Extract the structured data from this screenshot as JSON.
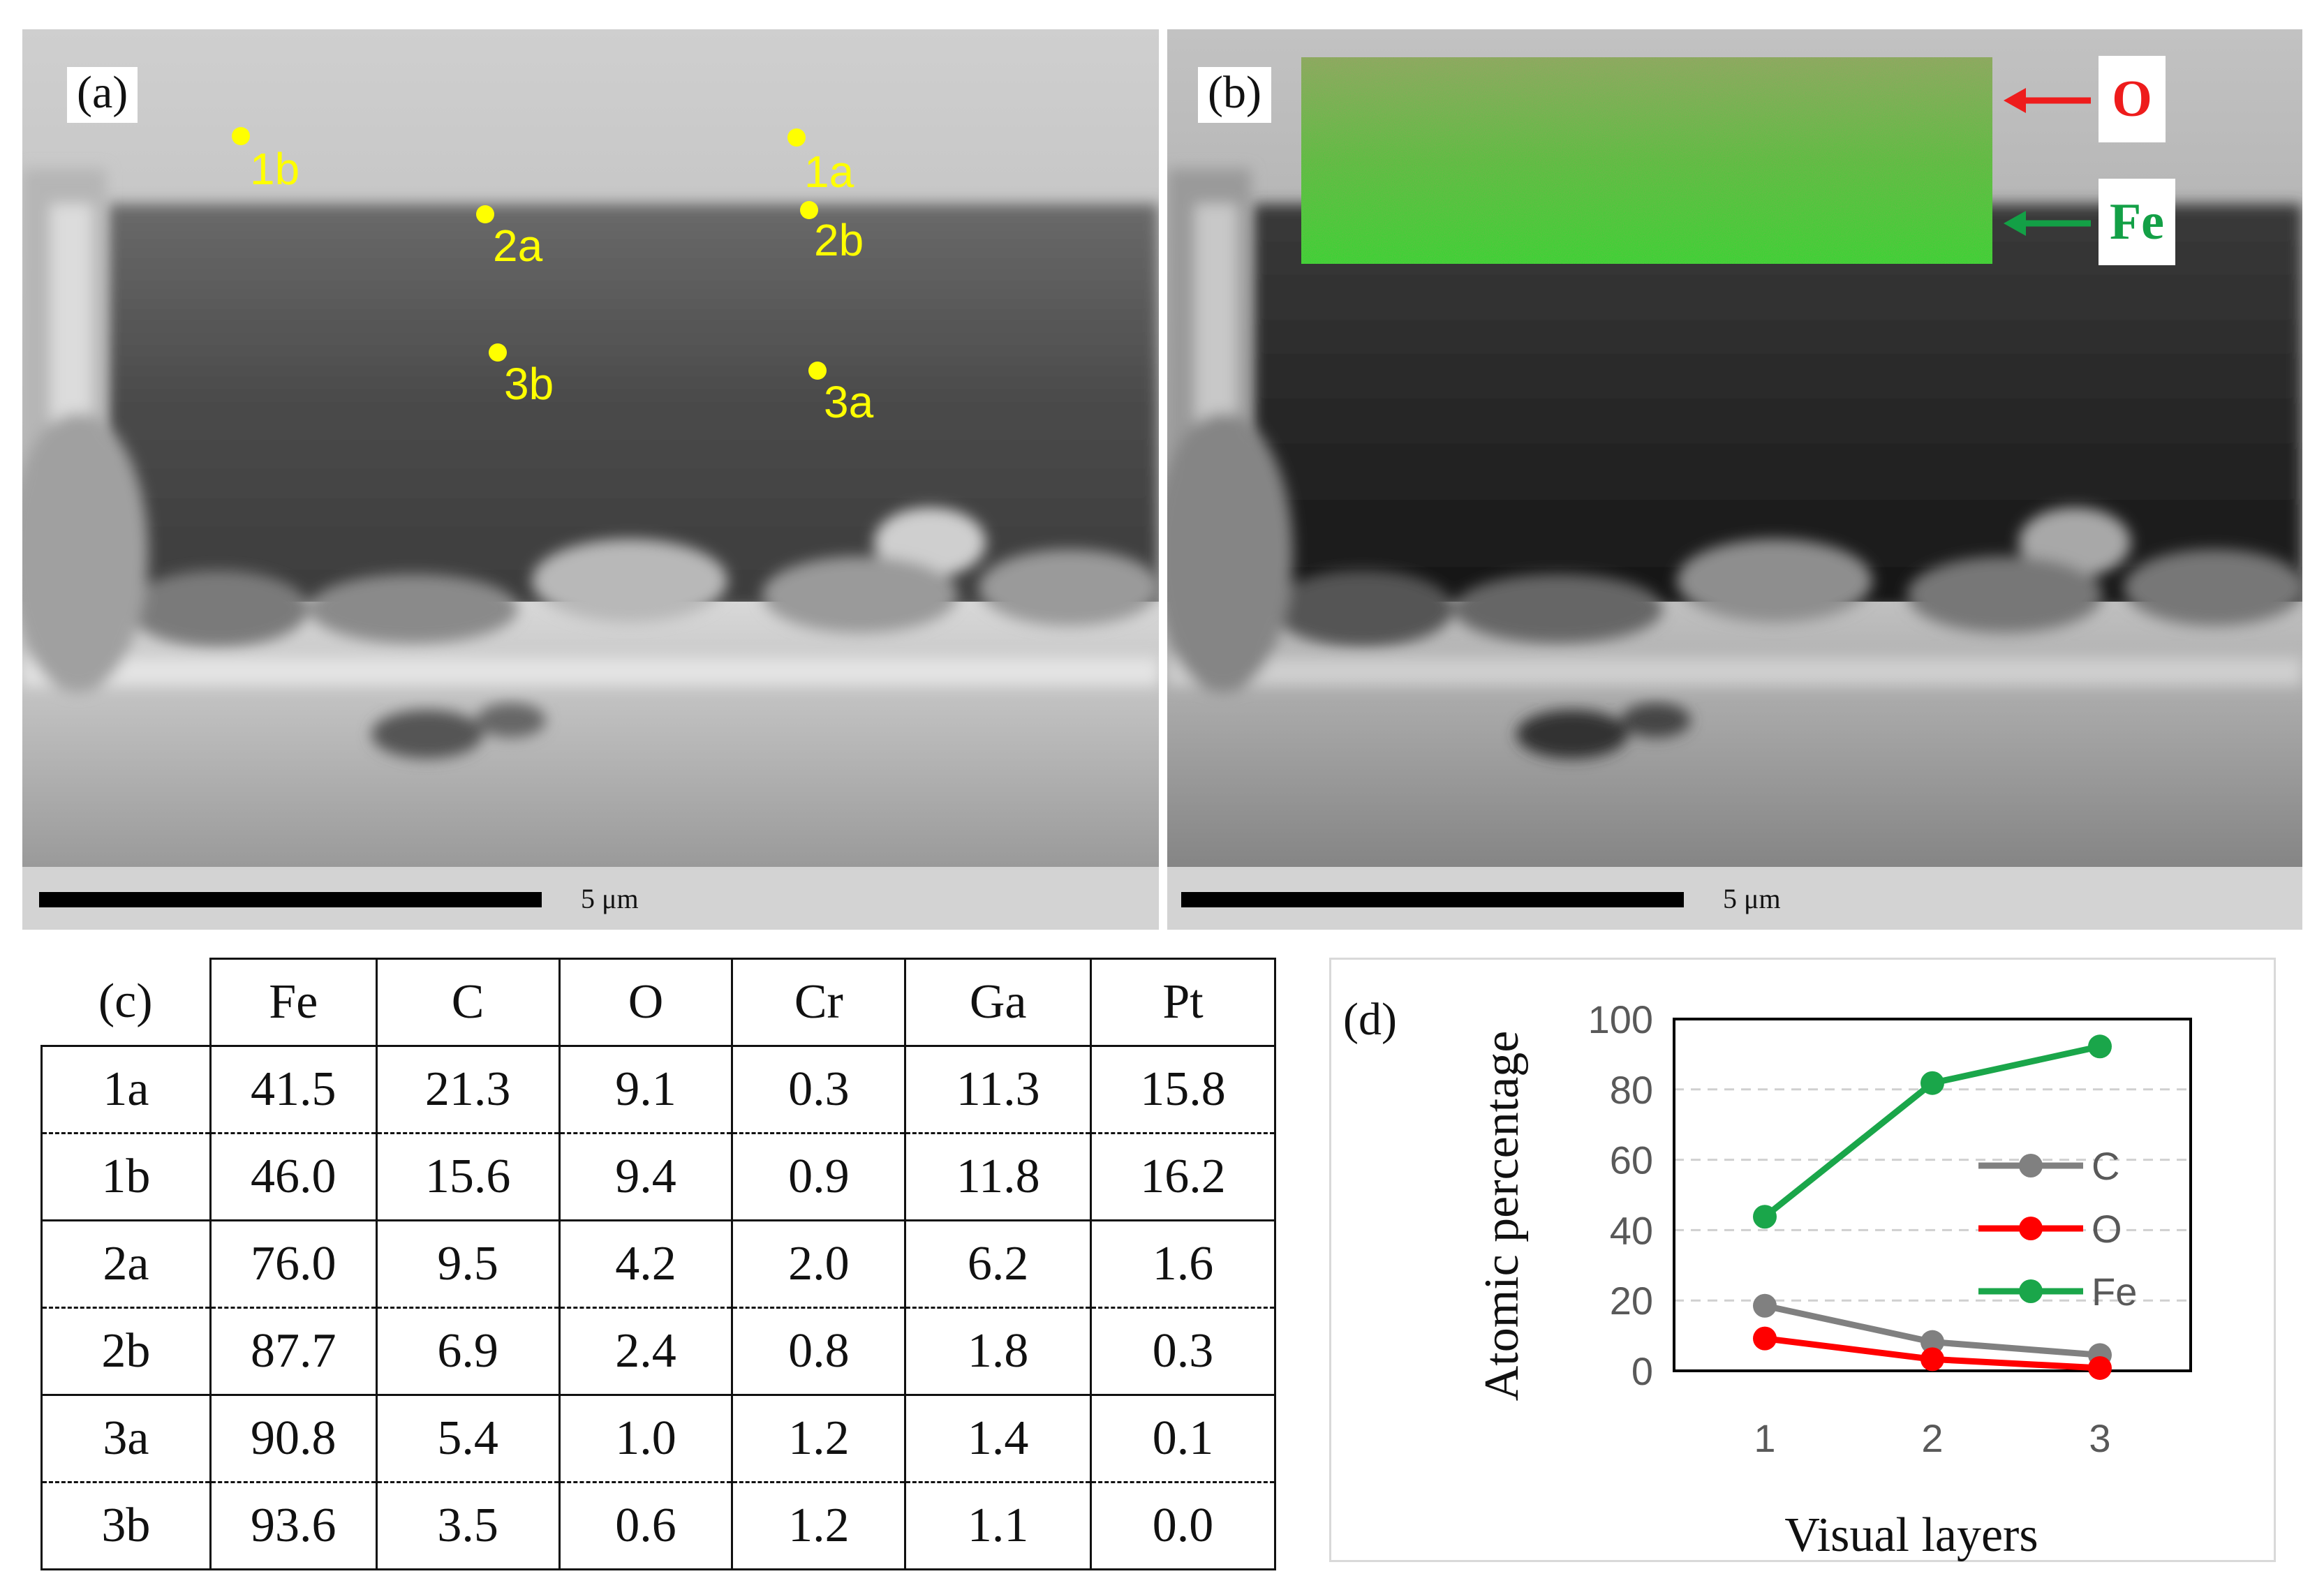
{
  "panels": {
    "a_label": "(a)",
    "b_label": "(b)",
    "c_label": "(c)",
    "d_label": "(d)"
  },
  "scalebar": {
    "label": "5 μm"
  },
  "points": [
    {
      "id": "1b"
    },
    {
      "id": "1a"
    },
    {
      "id": "2a"
    },
    {
      "id": "2b"
    },
    {
      "id": "3b"
    },
    {
      "id": "3a"
    }
  ],
  "element_map": {
    "o_label": "O",
    "fe_label": "Fe",
    "o_color": "#ee1c1c",
    "fe_color": "#13a046"
  },
  "table": {
    "columns": [
      "Fe",
      "C",
      "O",
      "Cr",
      "Ga",
      "Pt"
    ],
    "rows": [
      {
        "point": "1a",
        "values": [
          "41.5",
          "21.3",
          "9.1",
          "0.3",
          "11.3",
          "15.8"
        ]
      },
      {
        "point": "1b",
        "values": [
          "46.0",
          "15.6",
          "9.4",
          "0.9",
          "11.8",
          "16.2"
        ]
      },
      {
        "point": "2a",
        "values": [
          "76.0",
          "9.5",
          "4.2",
          "2.0",
          "6.2",
          "1.6"
        ]
      },
      {
        "point": "2b",
        "values": [
          "87.7",
          "6.9",
          "2.4",
          "0.8",
          "1.8",
          "0.3"
        ]
      },
      {
        "point": "3a",
        "values": [
          "90.8",
          "5.4",
          "1.0",
          "1.2",
          "1.4",
          "0.1"
        ]
      },
      {
        "point": "3b",
        "values": [
          "93.6",
          "3.5",
          "0.6",
          "1.2",
          "1.1",
          "0.0"
        ]
      }
    ]
  },
  "chart_data": {
    "type": "line",
    "xlabel": "Visual layers",
    "ylabel": "Atomic percentage",
    "x": [
      1,
      2,
      3
    ],
    "ylim": [
      0,
      100
    ],
    "yticks": [
      0,
      20,
      40,
      60,
      80,
      100
    ],
    "grid": true,
    "legend_position": "right-middle",
    "series": [
      {
        "name": "C",
        "color": "#808080",
        "values": [
          18.5,
          8.2,
          4.5
        ]
      },
      {
        "name": "O",
        "color": "#ff0000",
        "values": [
          9.2,
          3.3,
          0.8
        ]
      },
      {
        "name": "Fe",
        "color": "#1aa64a",
        "values": [
          43.8,
          81.8,
          92.2
        ]
      }
    ]
  }
}
